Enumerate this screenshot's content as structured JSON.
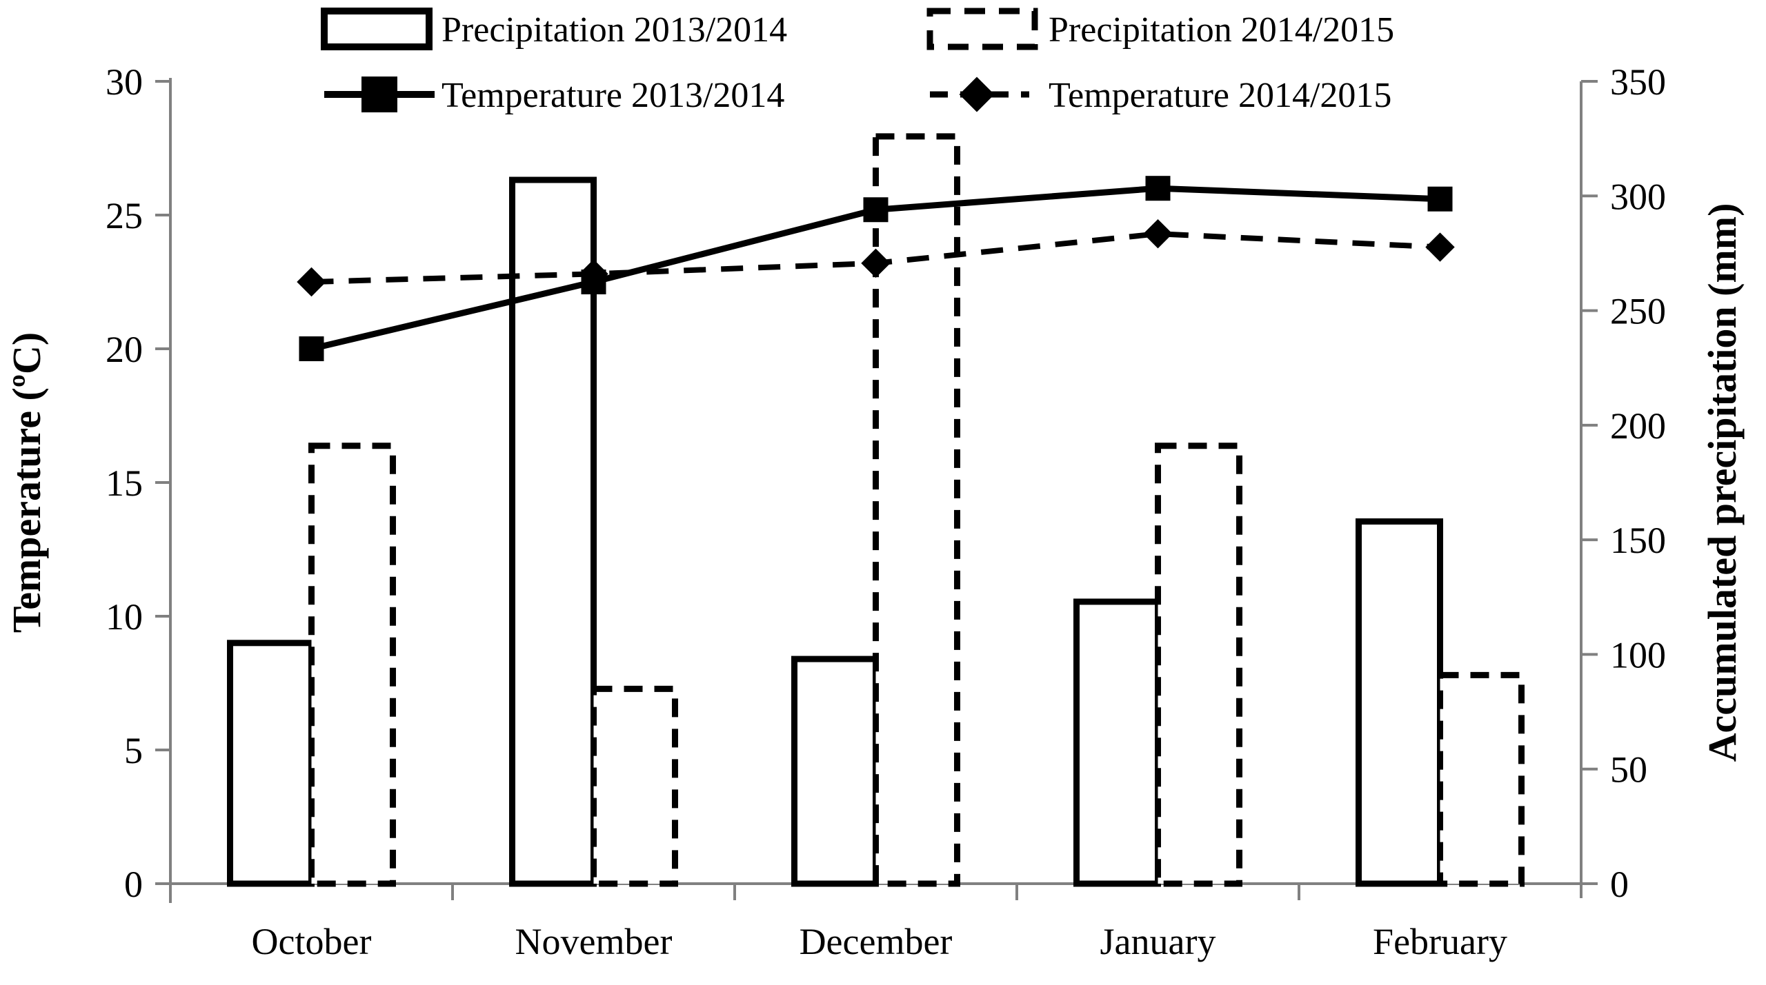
{
  "figure": {
    "background": "#ffffff",
    "axis_color": "#808080",
    "series_color": "#000000"
  },
  "chart_data": {
    "type": "bar",
    "subtype": "dual-axis bar+line combo",
    "categories": [
      "October",
      "November",
      "December",
      "January",
      "February"
    ],
    "left_axis": {
      "label": "Temperature (ºC)",
      "min": 0,
      "max": 30,
      "tick_step": 5,
      "ticks": [
        0,
        5,
        10,
        15,
        20,
        25,
        30
      ]
    },
    "right_axis": {
      "label": "Accumulated precipitation (mm)",
      "min": 0,
      "max": 350,
      "tick_step": 50,
      "ticks": [
        0,
        50,
        100,
        150,
        200,
        250,
        300,
        350
      ]
    },
    "series": [
      {
        "name": "Precipitation 2013/2014",
        "type": "bar",
        "style": "solid",
        "axis": "right",
        "values": [
          105,
          307,
          98,
          123,
          158
        ]
      },
      {
        "name": "Precipitation 2014/2015",
        "type": "bar",
        "style": "dashed",
        "axis": "right",
        "values": [
          191,
          85,
          326,
          191,
          91
        ]
      },
      {
        "name": "Temperature 2013/2014",
        "type": "line",
        "style": "solid",
        "marker": "square",
        "axis": "left",
        "values": [
          20.0,
          22.5,
          25.2,
          26.0,
          25.6
        ]
      },
      {
        "name": "Temperature 2014/2015",
        "type": "line",
        "style": "dashed",
        "marker": "diamond",
        "axis": "left",
        "values": [
          22.5,
          22.8,
          23.2,
          24.3,
          23.8
        ]
      }
    ],
    "legend_position": "top",
    "grid": "off"
  }
}
